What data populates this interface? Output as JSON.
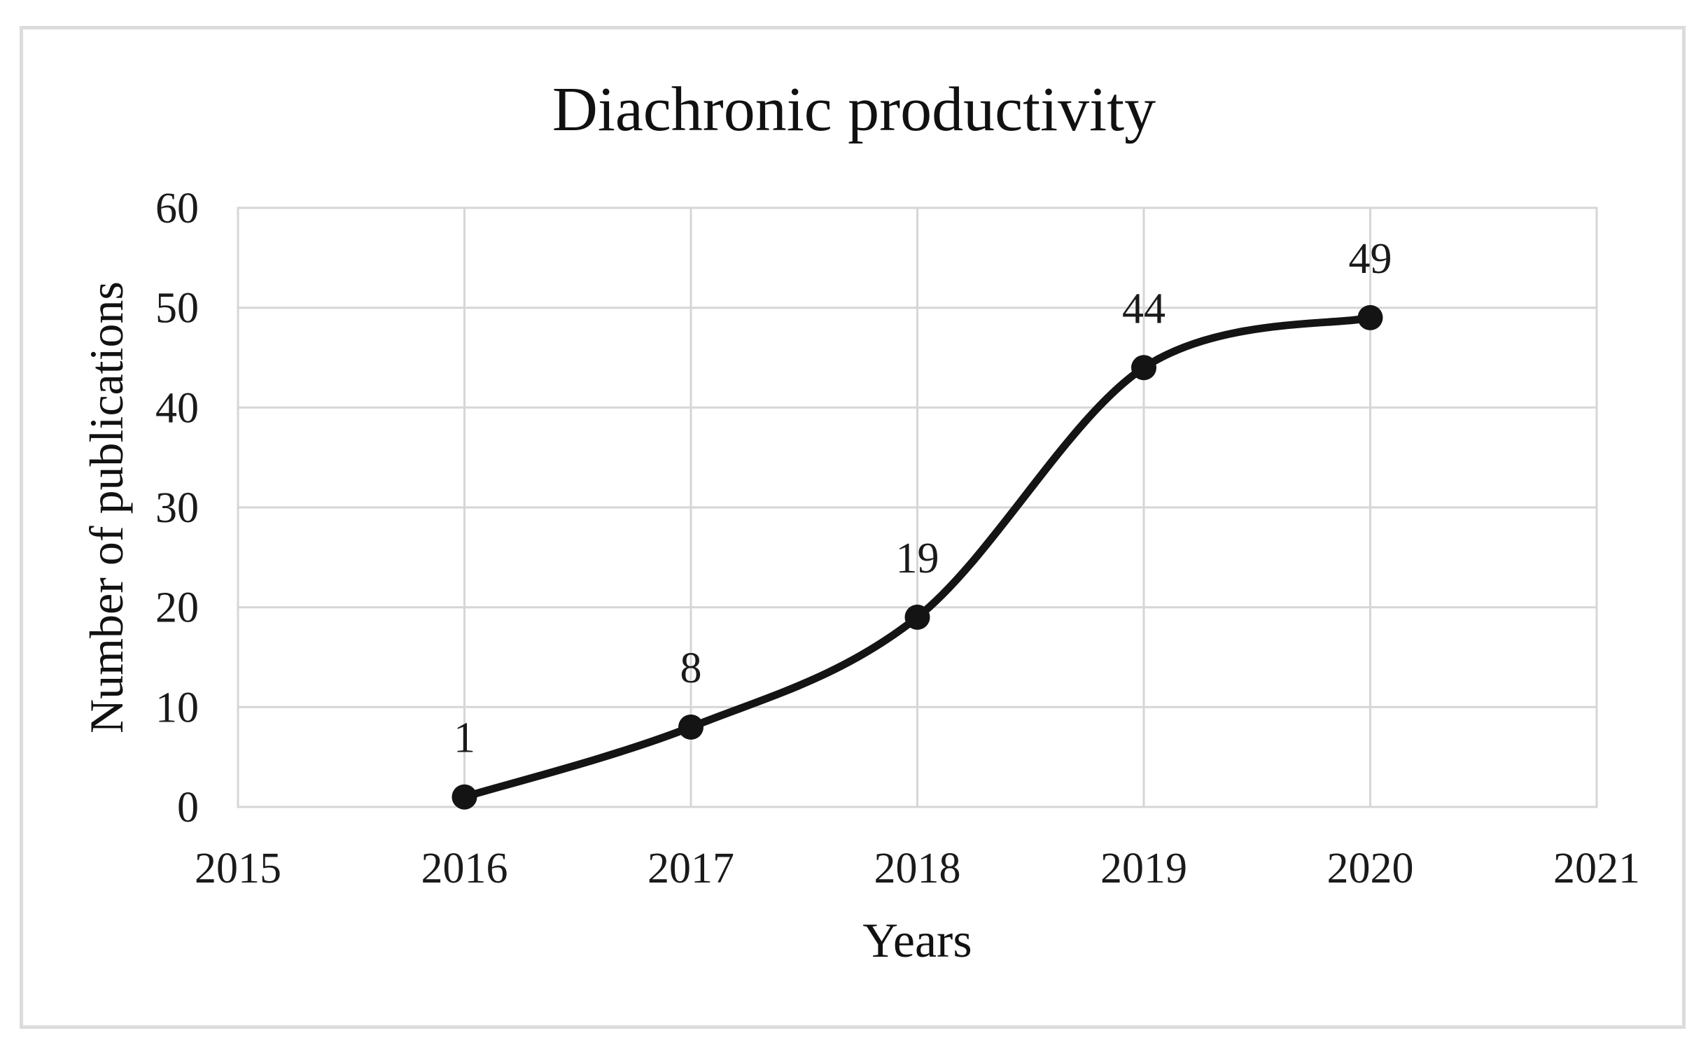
{
  "figure": {
    "title": "Diachronic productivity",
    "x_axis_title": "Years",
    "y_axis_title": "Number of publications"
  },
  "chart_data": {
    "type": "line",
    "title": "Diachronic productivity",
    "xlabel": "Years",
    "ylabel": "Number of publications",
    "x": [
      2016,
      2017,
      2018,
      2019,
      2020
    ],
    "values": [
      1,
      8,
      19,
      44,
      49
    ],
    "data_labels": [
      "1",
      "8",
      "19",
      "44",
      "49"
    ],
    "x_ticks": [
      2015,
      2016,
      2017,
      2018,
      2019,
      2020,
      2021
    ],
    "y_ticks": [
      0,
      10,
      20,
      30,
      40,
      50,
      60
    ],
    "xlim": [
      2015,
      2021
    ],
    "ylim": [
      0,
      60
    ],
    "grid": true,
    "smooth": true,
    "legend": "none",
    "line_color": "#141414",
    "marker_color": "#141414",
    "gridline_color": "#d6d6d6",
    "frame_color": "#dcdcdc"
  }
}
